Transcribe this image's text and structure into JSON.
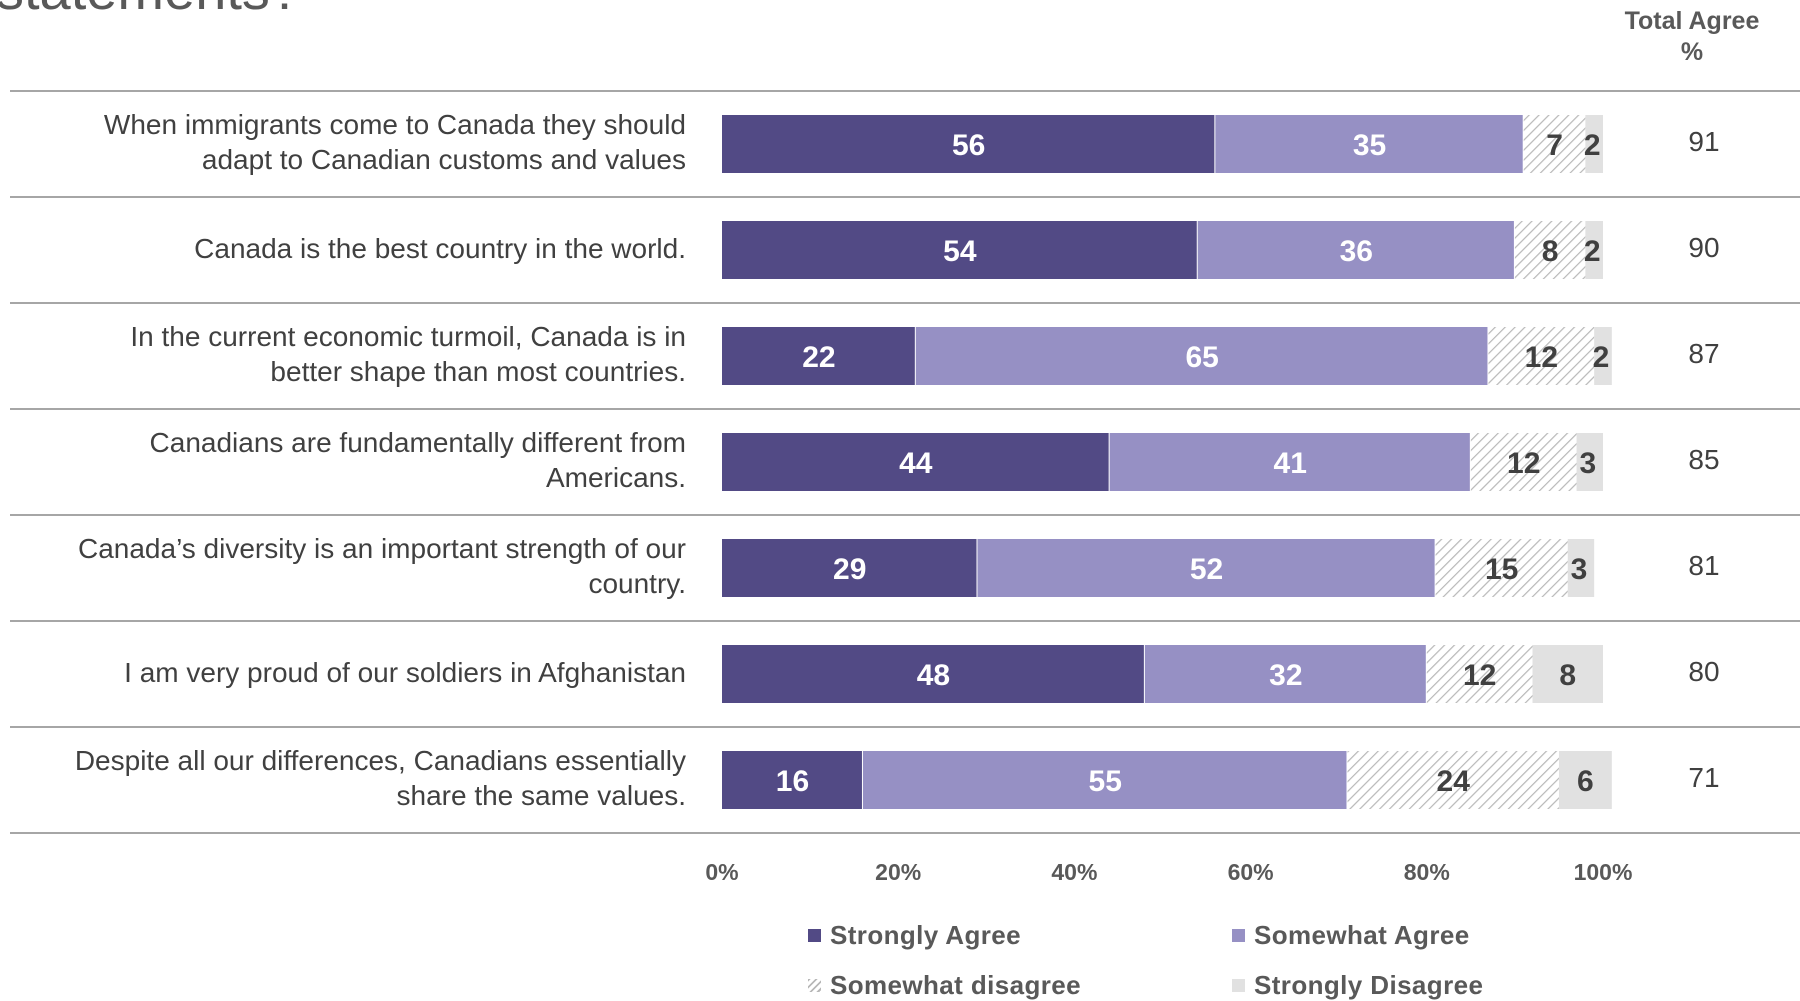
{
  "page": {
    "title": "statements?"
  },
  "total_header": {
    "line1": "Total Agree",
    "line2": "%"
  },
  "colors": {
    "strongly_agree": "#524a85",
    "somewhat_agree": "#9690c4",
    "somewhat_disagree": "#d6d6d6",
    "strongly_disagree": "#e1e1e1",
    "gridline": "#a6a6a6"
  },
  "chart_data": {
    "type": "bar",
    "orientation": "horizontal",
    "stacked": true,
    "xlim": [
      0,
      100
    ],
    "x_ticks": [
      "0%",
      "20%",
      "40%",
      "60%",
      "80%",
      "100%"
    ],
    "legend_position": "bottom",
    "categories": [
      [
        "When immigrants come to Canada they should",
        "adapt to Canadian customs and values"
      ],
      [
        "Canada is the best country in  the world."
      ],
      [
        "In the current economic turmoil, Canada is in",
        "better shape than most countries."
      ],
      [
        "Canadians are fundamentally different from",
        "Americans."
      ],
      [
        "Canada’s diversity is an important strength of our",
        "country."
      ],
      [
        "I am very proud of  our soldiers in Afghanistan"
      ],
      [
        "Despite all our differences, Canadians essentially",
        "share the same values."
      ]
    ],
    "series": [
      {
        "name": "Strongly Agree",
        "pattern": "solid-dark",
        "values": [
          56,
          54,
          22,
          44,
          29,
          48,
          16
        ]
      },
      {
        "name": "Somewhat Agree",
        "pattern": "solid-light",
        "values": [
          35,
          36,
          65,
          41,
          52,
          32,
          55
        ]
      },
      {
        "name": "Somewhat disagree",
        "pattern": "hatched",
        "values": [
          7,
          8,
          12,
          12,
          15,
          12,
          24
        ]
      },
      {
        "name": "Strongly Disagree",
        "pattern": "solid-grey",
        "values": [
          2,
          2,
          2,
          3,
          3,
          8,
          6
        ]
      }
    ],
    "total_agree": [
      91,
      90,
      87,
      85,
      81,
      80,
      71
    ]
  }
}
